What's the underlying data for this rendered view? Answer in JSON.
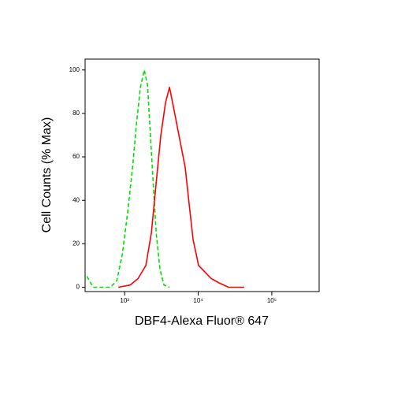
{
  "chart_data": {
    "type": "line",
    "x_label": "DBF4-Alexa Fluor® 647",
    "y_label": "Cell Counts (% Max)",
    "xscale": "log",
    "xlim": [
      290,
      440000
    ],
    "ylim": [
      -2,
      105
    ],
    "xticks": [
      {
        "value": 1000,
        "label": "10³"
      },
      {
        "value": 10000,
        "label": "10⁴"
      },
      {
        "value": 100000,
        "label": "10⁵"
      }
    ],
    "yticks": [
      0,
      20,
      40,
      60,
      80,
      100
    ],
    "series": [
      {
        "color": "#00e000",
        "dash": true,
        "x": [
          307,
          373,
          641,
          782,
          929,
          1104,
          1279,
          1446,
          1637,
          1850,
          2043,
          2199,
          2427,
          2679,
          3029,
          3428,
          4070
        ],
        "values": [
          5,
          0,
          0,
          3,
          15,
          35,
          55,
          75,
          92,
          100,
          93,
          75,
          50,
          25,
          8,
          1,
          0
        ]
      },
      {
        "color": "#ff0000",
        "dash": false,
        "x": [
          821,
          1188,
          1520,
          1944,
          2310,
          2679,
          3105,
          3598,
          4070,
          4604,
          5608,
          6664,
          7536,
          8515,
          10120,
          12330,
          15000,
          19190,
          25800,
          42270
        ],
        "values": [
          0,
          1,
          4,
          10,
          25,
          48,
          70,
          85,
          92,
          83,
          68,
          55,
          38,
          22,
          10,
          7,
          4,
          2,
          0,
          0
        ]
      }
    ]
  }
}
